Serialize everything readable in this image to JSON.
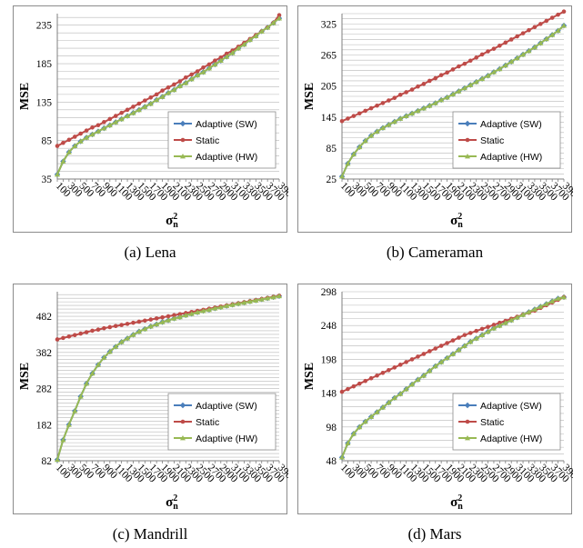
{
  "chart_data": [
    {
      "id": "lena",
      "type": "line",
      "caption": "(a) Lena",
      "ylabel": "MSE",
      "xlabel": "σ²n",
      "ylim": [
        35,
        250
      ],
      "yticks": [
        35,
        85,
        135,
        185,
        235
      ],
      "xtick_labels": [
        "100",
        "300",
        "500",
        "700",
        "900",
        "1100",
        "1300",
        "1500",
        "1700",
        "1900",
        "2100",
        "2300",
        "2500",
        "2700",
        "2900",
        "3100",
        "3300",
        "3500",
        "3700",
        "3900"
      ],
      "x": [
        100,
        200,
        300,
        400,
        500,
        600,
        700,
        800,
        900,
        1000,
        1100,
        1200,
        1300,
        1400,
        1500,
        1600,
        1700,
        1800,
        1900,
        2000,
        2100,
        2200,
        2300,
        2400,
        2500,
        2600,
        2700,
        2800,
        2900,
        3000,
        3100,
        3200,
        3300,
        3400,
        3500,
        3600,
        3700,
        3800,
        3900
      ],
      "legend_position": "bottom-right",
      "grid": true,
      "series": [
        {
          "name": "Adaptive (SW)",
          "color": "#4a7ebb",
          "marker": "diamond",
          "values": [
            41,
            58,
            70,
            78,
            84,
            89,
            93,
            97,
            101,
            105,
            109,
            113,
            117,
            121,
            125,
            129,
            133,
            138,
            142,
            147,
            151,
            156,
            160,
            165,
            170,
            174,
            179,
            184,
            189,
            194,
            199,
            205,
            210,
            216,
            221,
            227,
            232,
            238,
            244
          ]
        },
        {
          "name": "Static",
          "color": "#be4b48",
          "marker": "circle",
          "values": [
            78,
            82,
            86,
            90,
            94,
            98,
            102,
            105,
            109,
            113,
            117,
            121,
            125,
            129,
            133,
            137,
            141,
            145,
            150,
            154,
            158,
            162,
            167,
            171,
            175,
            180,
            184,
            189,
            193,
            198,
            202,
            207,
            212,
            217,
            222,
            227,
            232,
            238,
            248
          ]
        },
        {
          "name": "Adaptive (HW)",
          "color": "#98b954",
          "marker": "triangle",
          "values": [
            41,
            58,
            70,
            78,
            84,
            89,
            93,
            97,
            101,
            105,
            109,
            113,
            117,
            121,
            125,
            129,
            133,
            138,
            142,
            147,
            151,
            156,
            160,
            165,
            170,
            174,
            179,
            184,
            189,
            194,
            199,
            205,
            210,
            216,
            221,
            227,
            232,
            238,
            244
          ]
        }
      ]
    },
    {
      "id": "cameraman",
      "type": "line",
      "caption": "(b) Cameraman",
      "ylabel": "MSE",
      "xlabel": "σ²n",
      "ylim": [
        25,
        345
      ],
      "yticks": [
        25,
        85,
        145,
        205,
        265,
        325
      ],
      "xtick_labels": [
        "100",
        "300",
        "500",
        "700",
        "900",
        "1100",
        "1300",
        "1500",
        "1700",
        "1900",
        "2100",
        "2300",
        "2500",
        "2700",
        "2900",
        "3100",
        "3300",
        "3500",
        "3700",
        "3900"
      ],
      "x": [
        100,
        200,
        300,
        400,
        500,
        600,
        700,
        800,
        900,
        1000,
        1100,
        1200,
        1300,
        1400,
        1500,
        1600,
        1700,
        1800,
        1900,
        2000,
        2100,
        2200,
        2300,
        2400,
        2500,
        2600,
        2700,
        2800,
        2900,
        3000,
        3100,
        3200,
        3300,
        3400,
        3500,
        3600,
        3700,
        3800,
        3900
      ],
      "legend_position": "bottom-right",
      "grid": true,
      "series": [
        {
          "name": "Adaptive (SW)",
          "color": "#4a7ebb",
          "marker": "diamond",
          "values": [
            30,
            55,
            73,
            87,
            99,
            109,
            117,
            124,
            130,
            136,
            142,
            147,
            152,
            157,
            162,
            167,
            172,
            178,
            183,
            189,
            195,
            201,
            207,
            213,
            219,
            225,
            232,
            238,
            245,
            252,
            259,
            266,
            273,
            280,
            288,
            296,
            304,
            312,
            322
          ]
        },
        {
          "name": "Static",
          "color": "#be4b48",
          "marker": "circle",
          "values": [
            137,
            142,
            147,
            152,
            157,
            162,
            167,
            172,
            177,
            182,
            188,
            193,
            198,
            204,
            209,
            215,
            220,
            226,
            231,
            237,
            243,
            248,
            254,
            260,
            266,
            272,
            277,
            283,
            289,
            295,
            301,
            307,
            313,
            319,
            325,
            331,
            337,
            343,
            349
          ]
        },
        {
          "name": "Adaptive (HW)",
          "color": "#98b954",
          "marker": "triangle",
          "values": [
            30,
            55,
            73,
            87,
            99,
            109,
            117,
            124,
            130,
            136,
            142,
            147,
            152,
            157,
            162,
            167,
            172,
            178,
            183,
            189,
            195,
            201,
            207,
            213,
            219,
            225,
            232,
            238,
            245,
            252,
            259,
            266,
            273,
            280,
            288,
            296,
            304,
            312,
            322
          ]
        }
      ]
    },
    {
      "id": "mandrill",
      "type": "line",
      "caption": "(c) Mandrill",
      "ylabel": "MSE",
      "xlabel": "σ²n",
      "ylim": [
        82,
        550
      ],
      "yticks": [
        82,
        182,
        282,
        382,
        482
      ],
      "xtick_labels": [
        "100",
        "300",
        "500",
        "700",
        "900",
        "1100",
        "1300",
        "1500",
        "1700",
        "1900",
        "2100",
        "2300",
        "2500",
        "2700",
        "2900",
        "3100",
        "3300",
        "3500",
        "3700",
        "3900"
      ],
      "x": [
        100,
        200,
        300,
        400,
        500,
        600,
        700,
        800,
        900,
        1000,
        1100,
        1200,
        1300,
        1400,
        1500,
        1600,
        1700,
        1800,
        1900,
        2000,
        2100,
        2200,
        2300,
        2400,
        2500,
        2600,
        2700,
        2800,
        2900,
        3000,
        3100,
        3200,
        3300,
        3400,
        3500,
        3600,
        3700,
        3800,
        3900
      ],
      "legend_position": "bottom-right",
      "grid": true,
      "series": [
        {
          "name": "Adaptive (SW)",
          "color": "#4a7ebb",
          "marker": "diamond",
          "values": [
            85,
            140,
            182,
            220,
            260,
            296,
            324,
            348,
            368,
            384,
            398,
            411,
            421,
            431,
            440,
            447,
            454,
            460,
            466,
            471,
            476,
            480,
            485,
            489,
            493,
            497,
            500,
            504,
            507,
            511,
            514,
            517,
            520,
            523,
            526,
            529,
            532,
            535,
            538
          ]
        },
        {
          "name": "Static",
          "color": "#be4b48",
          "marker": "circle",
          "values": [
            418,
            422,
            426,
            430,
            434,
            438,
            442,
            445,
            449,
            452,
            455,
            458,
            461,
            464,
            467,
            470,
            473,
            476,
            479,
            482,
            485,
            488,
            491,
            494,
            497,
            500,
            503,
            506,
            509,
            512,
            515,
            518,
            521,
            524,
            527,
            530,
            533,
            536,
            539
          ]
        },
        {
          "name": "Adaptive (HW)",
          "color": "#98b954",
          "marker": "triangle",
          "values": [
            85,
            140,
            182,
            220,
            260,
            296,
            324,
            348,
            368,
            384,
            398,
            411,
            421,
            431,
            440,
            447,
            454,
            460,
            466,
            471,
            476,
            480,
            485,
            489,
            493,
            497,
            500,
            504,
            507,
            511,
            514,
            517,
            520,
            523,
            526,
            529,
            532,
            535,
            538
          ]
        }
      ]
    },
    {
      "id": "mars",
      "type": "line",
      "caption": "(d) Mars",
      "ylabel": "MSE",
      "xlabel": "σ²n",
      "ylim": [
        48,
        298
      ],
      "yticks": [
        48,
        98,
        148,
        198,
        248,
        298
      ],
      "xtick_labels": [
        "100",
        "300",
        "500",
        "700",
        "900",
        "1100",
        "1300",
        "1500",
        "1700",
        "1900",
        "2100",
        "2300",
        "2500",
        "2700",
        "2900",
        "3100",
        "3300",
        "3500",
        "3700",
        "3900"
      ],
      "x": [
        100,
        200,
        300,
        400,
        500,
        600,
        700,
        800,
        900,
        1000,
        1100,
        1200,
        1300,
        1400,
        1500,
        1600,
        1700,
        1800,
        1900,
        2000,
        2100,
        2200,
        2300,
        2400,
        2500,
        2600,
        2700,
        2800,
        2900,
        3000,
        3100,
        3200,
        3300,
        3400,
        3500,
        3600,
        3700,
        3800,
        3900
      ],
      "legend_position": "bottom-right",
      "grid": true,
      "series": [
        {
          "name": "Adaptive (SW)",
          "color": "#4a7ebb",
          "marker": "diamond",
          "values": [
            53,
            74,
            88,
            98,
            106,
            113,
            120,
            127,
            134,
            141,
            147,
            154,
            161,
            168,
            174,
            181,
            188,
            194,
            200,
            206,
            212,
            218,
            224,
            229,
            234,
            239,
            244,
            248,
            252,
            256,
            260,
            264,
            268,
            272,
            276,
            280,
            284,
            288,
            290
          ]
        },
        {
          "name": "Static",
          "color": "#be4b48",
          "marker": "circle",
          "values": [
            150,
            154,
            158,
            162,
            166,
            170,
            174,
            178,
            182,
            186,
            190,
            194,
            198,
            202,
            206,
            210,
            214,
            218,
            222,
            226,
            230,
            234,
            237,
            240,
            243,
            246,
            249,
            252,
            255,
            258,
            261,
            264,
            267,
            270,
            274,
            278,
            282,
            286,
            290
          ]
        },
        {
          "name": "Adaptive (HW)",
          "color": "#98b954",
          "marker": "triangle",
          "values": [
            53,
            74,
            88,
            98,
            106,
            113,
            120,
            127,
            134,
            141,
            147,
            154,
            161,
            168,
            174,
            181,
            188,
            194,
            200,
            206,
            212,
            218,
            224,
            229,
            234,
            239,
            244,
            248,
            252,
            256,
            260,
            264,
            268,
            272,
            276,
            280,
            284,
            288,
            290
          ]
        }
      ]
    }
  ]
}
